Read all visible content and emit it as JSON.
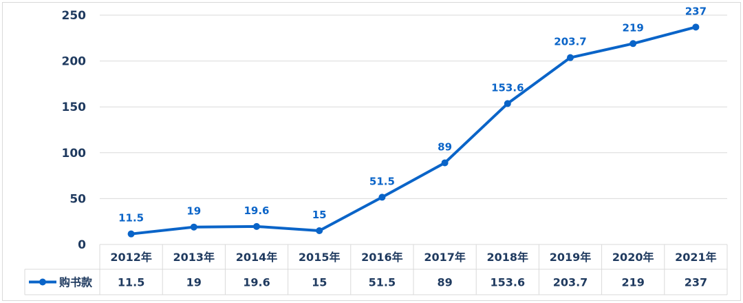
{
  "chart_data": {
    "type": "line",
    "title": "",
    "xlabel": "",
    "ylabel": "",
    "categories": [
      "2012年",
      "2013年",
      "2014年",
      "2015年",
      "2016年",
      "2017年",
      "2018年",
      "2019年",
      "2020年",
      "2021年"
    ],
    "series": [
      {
        "name": "购书款",
        "values": [
          11.5,
          19,
          19.6,
          15,
          51.5,
          89,
          153.6,
          203.7,
          219,
          237
        ]
      }
    ],
    "data_labels": [
      "11.5",
      "19",
      "19.6",
      "15",
      "51.5",
      "89",
      "153.6",
      "203.7",
      "219",
      "237"
    ],
    "ylim": [
      0,
      250
    ],
    "yticks": [
      "0",
      "50",
      "100",
      "150",
      "200",
      "250"
    ],
    "grid": true,
    "legend": "data-table",
    "data_table": true,
    "colors": {
      "series": "#0a64c8",
      "grid": "#d9d9d9",
      "text": "#1f3a5f"
    }
  }
}
